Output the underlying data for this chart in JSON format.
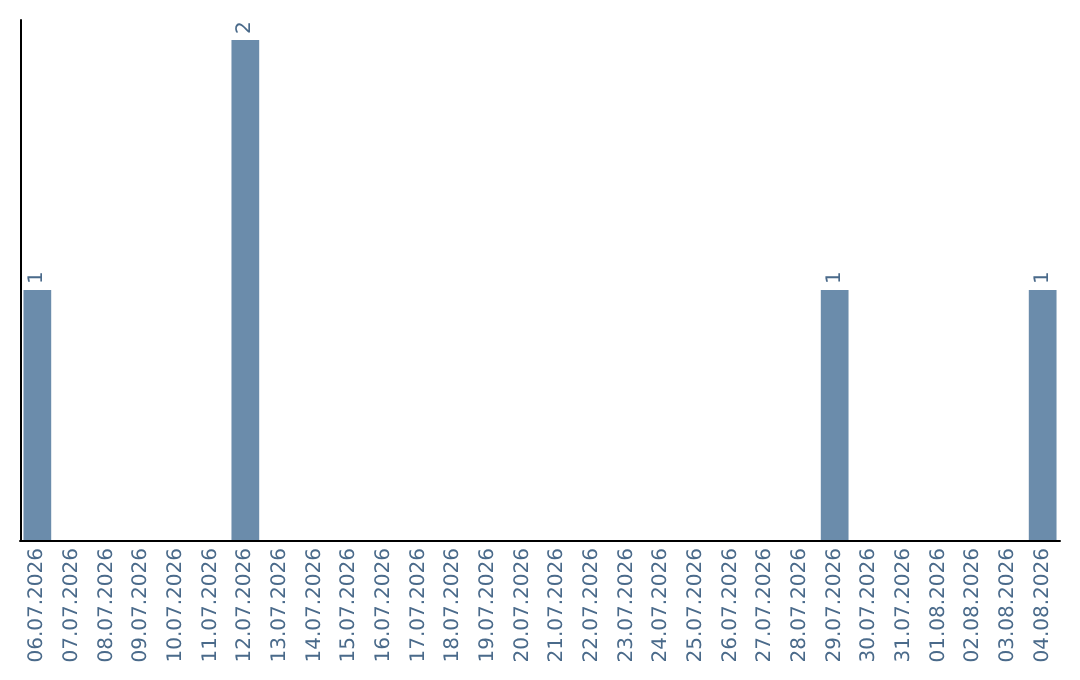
{
  "chart_data": {
    "type": "bar",
    "categories": [
      "06.07.2026",
      "07.07.2026",
      "08.07.2026",
      "09.07.2026",
      "10.07.2026",
      "11.07.2026",
      "12.07.2026",
      "13.07.2026",
      "14.07.2026",
      "15.07.2026",
      "16.07.2026",
      "17.07.2026",
      "18.07.2026",
      "19.07.2026",
      "20.07.2026",
      "21.07.2026",
      "22.07.2026",
      "23.07.2026",
      "24.07.2026",
      "25.07.2026",
      "26.07.2026",
      "27.07.2026",
      "28.07.2026",
      "29.07.2026",
      "30.07.2026",
      "31.07.2026",
      "01.08.2026",
      "02.08.2026",
      "03.08.2026",
      "04.08.2026"
    ],
    "values": [
      1,
      0,
      0,
      0,
      0,
      0,
      2,
      0,
      0,
      0,
      0,
      0,
      0,
      0,
      0,
      0,
      0,
      0,
      0,
      0,
      0,
      0,
      0,
      1,
      0,
      0,
      0,
      0,
      0,
      1
    ],
    "value_labels": [
      "1",
      null,
      null,
      null,
      null,
      null,
      "2",
      null,
      null,
      null,
      null,
      null,
      null,
      null,
      null,
      null,
      null,
      null,
      null,
      null,
      null,
      null,
      null,
      "1",
      null,
      null,
      null,
      null,
      null,
      "1"
    ],
    "color": "#6b8cab",
    "grid": false
  }
}
